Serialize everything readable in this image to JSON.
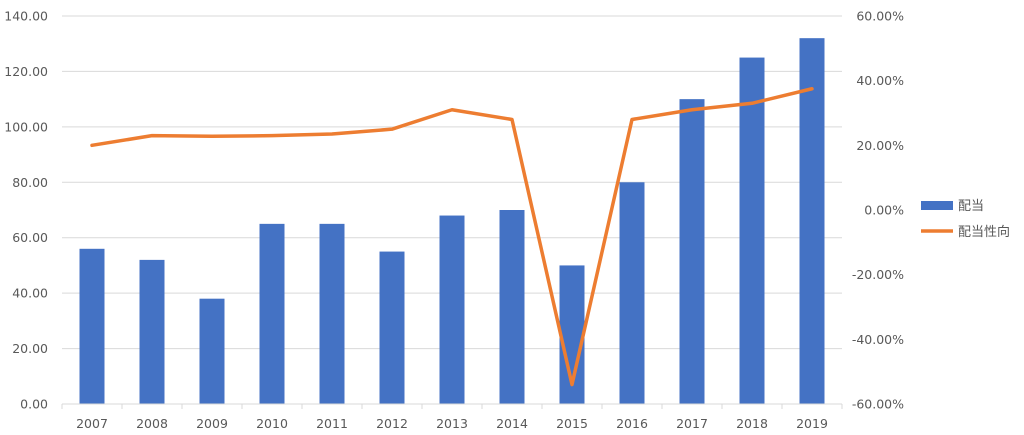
{
  "chart_data": {
    "type": "bar",
    "title": "",
    "categories": [
      "2007",
      "2008",
      "2009",
      "2010",
      "2011",
      "2012",
      "2013",
      "2014",
      "2015",
      "2016",
      "2017",
      "2018",
      "2019"
    ],
    "series": [
      {
        "name": "配当",
        "type": "bar",
        "axis": "left",
        "color": "#4472C4",
        "values": [
          56,
          52,
          38,
          65,
          65,
          55,
          68,
          70,
          50,
          80,
          110,
          125,
          132
        ]
      },
      {
        "name": "配当性向",
        "type": "line",
        "axis": "right",
        "color": "#ED7D31",
        "values": [
          0.2,
          0.23,
          0.228,
          0.23,
          0.235,
          0.25,
          0.31,
          0.28,
          -0.54,
          0.28,
          0.31,
          0.33,
          0.375
        ]
      }
    ],
    "y_left": {
      "min": 0,
      "max": 140,
      "step": 20,
      "tick_labels": [
        "0.00",
        "20.00",
        "40.00",
        "60.00",
        "80.00",
        "100.00",
        "120.00",
        "140.00"
      ]
    },
    "y_right": {
      "min": -0.6,
      "max": 0.6,
      "step": 0.2,
      "tick_labels": [
        "-60.00%",
        "-40.00%",
        "-20.00%",
        "0.00%",
        "20.00%",
        "40.00%",
        "60.00%"
      ]
    },
    "grid": true,
    "legend_position": "right"
  }
}
